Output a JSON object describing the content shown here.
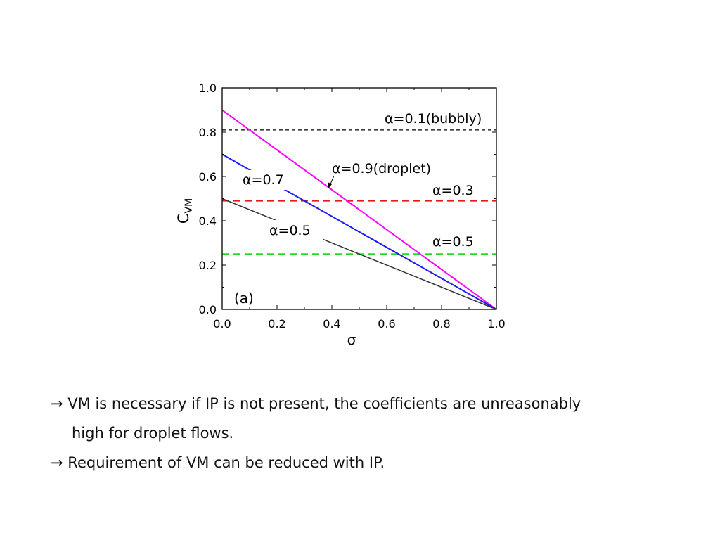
{
  "chart_data": {
    "type": "line",
    "panel_label": "(a)",
    "xlabel": "σ",
    "ylabel_main": "C",
    "ylabel_sub": "VM",
    "xlim": [
      0.0,
      1.0
    ],
    "ylim": [
      0.0,
      1.0
    ],
    "x_ticks": [
      "0.0",
      "0.2",
      "0.4",
      "0.6",
      "0.8",
      "1.0"
    ],
    "y_ticks": [
      "0.0",
      "0.2",
      "0.4",
      "0.6",
      "0.8",
      "1.0"
    ],
    "series": [
      {
        "style": "dashed",
        "color": "#000000",
        "x": [
          0.0,
          1.0
        ],
        "y": [
          0.81,
          0.81
        ]
      },
      {
        "style": "dashed",
        "color": "#e41a1c",
        "x": [
          0.0,
          1.0
        ],
        "y": [
          0.49,
          0.49
        ]
      },
      {
        "style": "dashed",
        "color": "#22dd22",
        "x": [
          0.0,
          1.0
        ],
        "y": [
          0.25,
          0.25
        ]
      },
      {
        "style": "solid",
        "color": "#ff00ff",
        "x": [
          0.0,
          1.0
        ],
        "y": [
          0.9,
          0.0
        ]
      },
      {
        "style": "solid",
        "color": "#1a1aff",
        "x": [
          0.0,
          1.0
        ],
        "y": [
          0.7,
          0.0
        ]
      },
      {
        "style": "solid",
        "color": "#333333",
        "x": [
          0.0,
          1.0
        ],
        "y": [
          0.5,
          0.0
        ]
      }
    ],
    "annotations": [
      {
        "text_greek": "α",
        "text_rest": "=0.1(bubbly)"
      },
      {
        "text_greek": "α",
        "text_rest": "=0.9(droplet)"
      },
      {
        "text_greek": "α",
        "text_rest": "=0.7"
      },
      {
        "text_greek": "α",
        "text_rest": "=0.3"
      },
      {
        "text_greek": "α",
        "text_rest": "=0.5"
      },
      {
        "text_greek": "α",
        "text_rest": "=0.5"
      }
    ]
  },
  "bullets": [
    {
      "arrow": "→",
      "text": "VM is necessary if IP is not present, the coefficients are unreasonably"
    },
    {
      "arrow": "",
      "text": "high for droplet flows."
    },
    {
      "arrow": "→",
      "text": "Requirement of VM can be reduced with IP."
    }
  ]
}
